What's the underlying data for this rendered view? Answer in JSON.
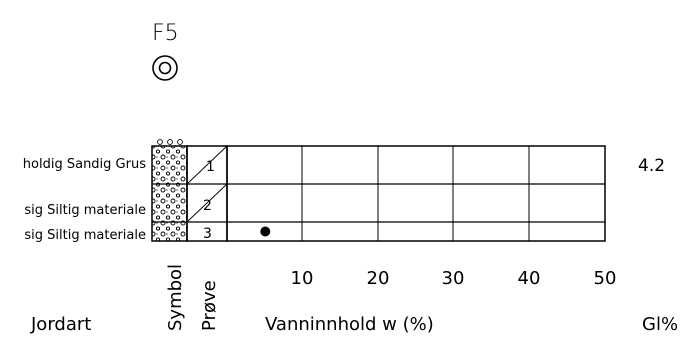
{
  "borehole": {
    "id": "F5",
    "symbol_icon": "concentric-circle-icon"
  },
  "layers": [
    {
      "description": "holdig Sandig Grus",
      "sample": "1"
    },
    {
      "description": "sig Siltig materiale",
      "sample": "2"
    },
    {
      "description": "sig Siltig materiale",
      "sample": "3"
    }
  ],
  "right_column": {
    "value": "4.2"
  },
  "axis": {
    "label": "Vanninnhold w (%)",
    "ticks": [
      "10",
      "20",
      "30",
      "40",
      "50"
    ]
  },
  "column_labels": {
    "soil": "Jordart",
    "symbol": "Symbol",
    "sample": "Prøve",
    "gl": "Gl%"
  },
  "chart_data": {
    "type": "scatter",
    "x_label": "Vanninnhold w (%)",
    "xlim": [
      0,
      50
    ],
    "points": [
      {
        "layer": "3",
        "x": 5
      }
    ]
  }
}
